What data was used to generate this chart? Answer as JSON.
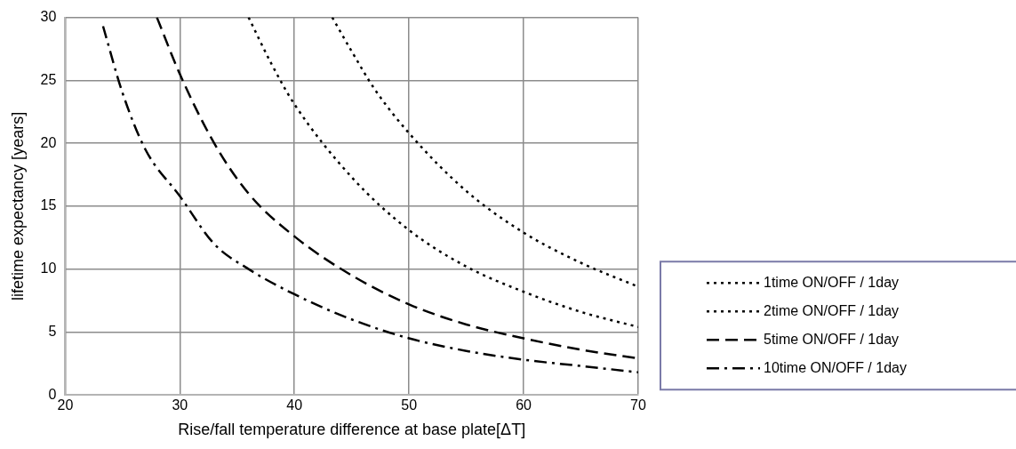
{
  "chart_data": {
    "type": "line",
    "xlabel": "Rise/fall temperature difference at base plate[ΔT]",
    "ylabel": "lifetime expectancy [years]",
    "xlim": [
      20,
      70
    ],
    "xticks": [
      20,
      30,
      40,
      50,
      60,
      70
    ],
    "ylim": [
      0,
      30
    ],
    "yticks": [
      0,
      5,
      10,
      15,
      20,
      25,
      30
    ],
    "grid": true,
    "legend": "right",
    "marker": "none",
    "series": [
      {
        "name": "1time ON/OFF / 1day",
        "color": "#000000",
        "line_style": "dotted",
        "x": [
          43.3,
          45,
          47,
          50,
          55,
          60,
          65,
          70
        ],
        "values": [
          30,
          27.3,
          24.3,
          20.8,
          16.2,
          12.9,
          10.5,
          8.6
        ]
      },
      {
        "name": "2time ON/OFF / 1day",
        "color": "#000000",
        "line_style": "dotted",
        "x": [
          36,
          38,
          40,
          45,
          50,
          55,
          60,
          65,
          70
        ],
        "values": [
          30,
          26.3,
          23.1,
          17.3,
          13.1,
          10.2,
          8.2,
          6.6,
          5.4
        ]
      },
      {
        "name": "5time ON/OFF / 1day",
        "color": "#000000",
        "line_style": "dashed",
        "x": [
          28,
          30,
          33,
          36,
          40,
          45,
          50,
          55,
          60,
          65,
          70
        ],
        "values": [
          30,
          25.5,
          20,
          16,
          12.6,
          9.5,
          7.2,
          5.6,
          4.5,
          3.6,
          2.9
        ]
      },
      {
        "name": "10time ON/OFF / 1day",
        "color": "#000000",
        "line_style": "dashdot",
        "x": [
          23.3,
          25,
          27,
          30,
          33,
          36,
          40,
          45,
          50,
          55,
          60,
          65,
          70
        ],
        "values": [
          29.3,
          24,
          19.5,
          15.8,
          12,
          10,
          8,
          6,
          4.5,
          3.5,
          2.8,
          2.3,
          1.8
        ]
      }
    ]
  }
}
